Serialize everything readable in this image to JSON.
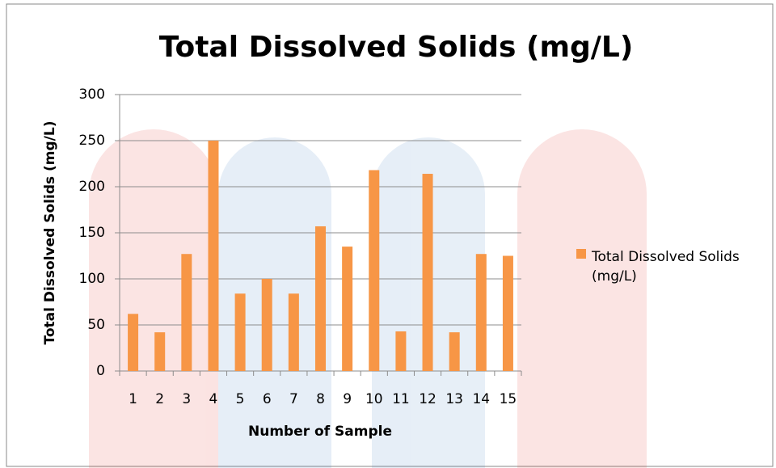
{
  "chart_data": {
    "type": "bar",
    "title": "Total Dissolved Solids (mg/L)",
    "x_label": "Number of Sample",
    "y_label": "Total Dissolved Solids (mg/L)",
    "categories": [
      "1",
      "2",
      "3",
      "4",
      "5",
      "6",
      "7",
      "8",
      "9",
      "10",
      "11",
      "12",
      "13",
      "14",
      "15"
    ],
    "series": [
      {
        "name": "Total Dissolved Solids (mg/L)",
        "color": "#f79646",
        "values": [
          62,
          42,
          127,
          250,
          84,
          100,
          84,
          157,
          135,
          218,
          43,
          214,
          42,
          127,
          125
        ]
      }
    ],
    "ylim": [
      0,
      300
    ],
    "yticks": [
      0,
      50,
      100,
      150,
      200,
      250,
      300
    ],
    "grid": true,
    "legend": "right"
  }
}
